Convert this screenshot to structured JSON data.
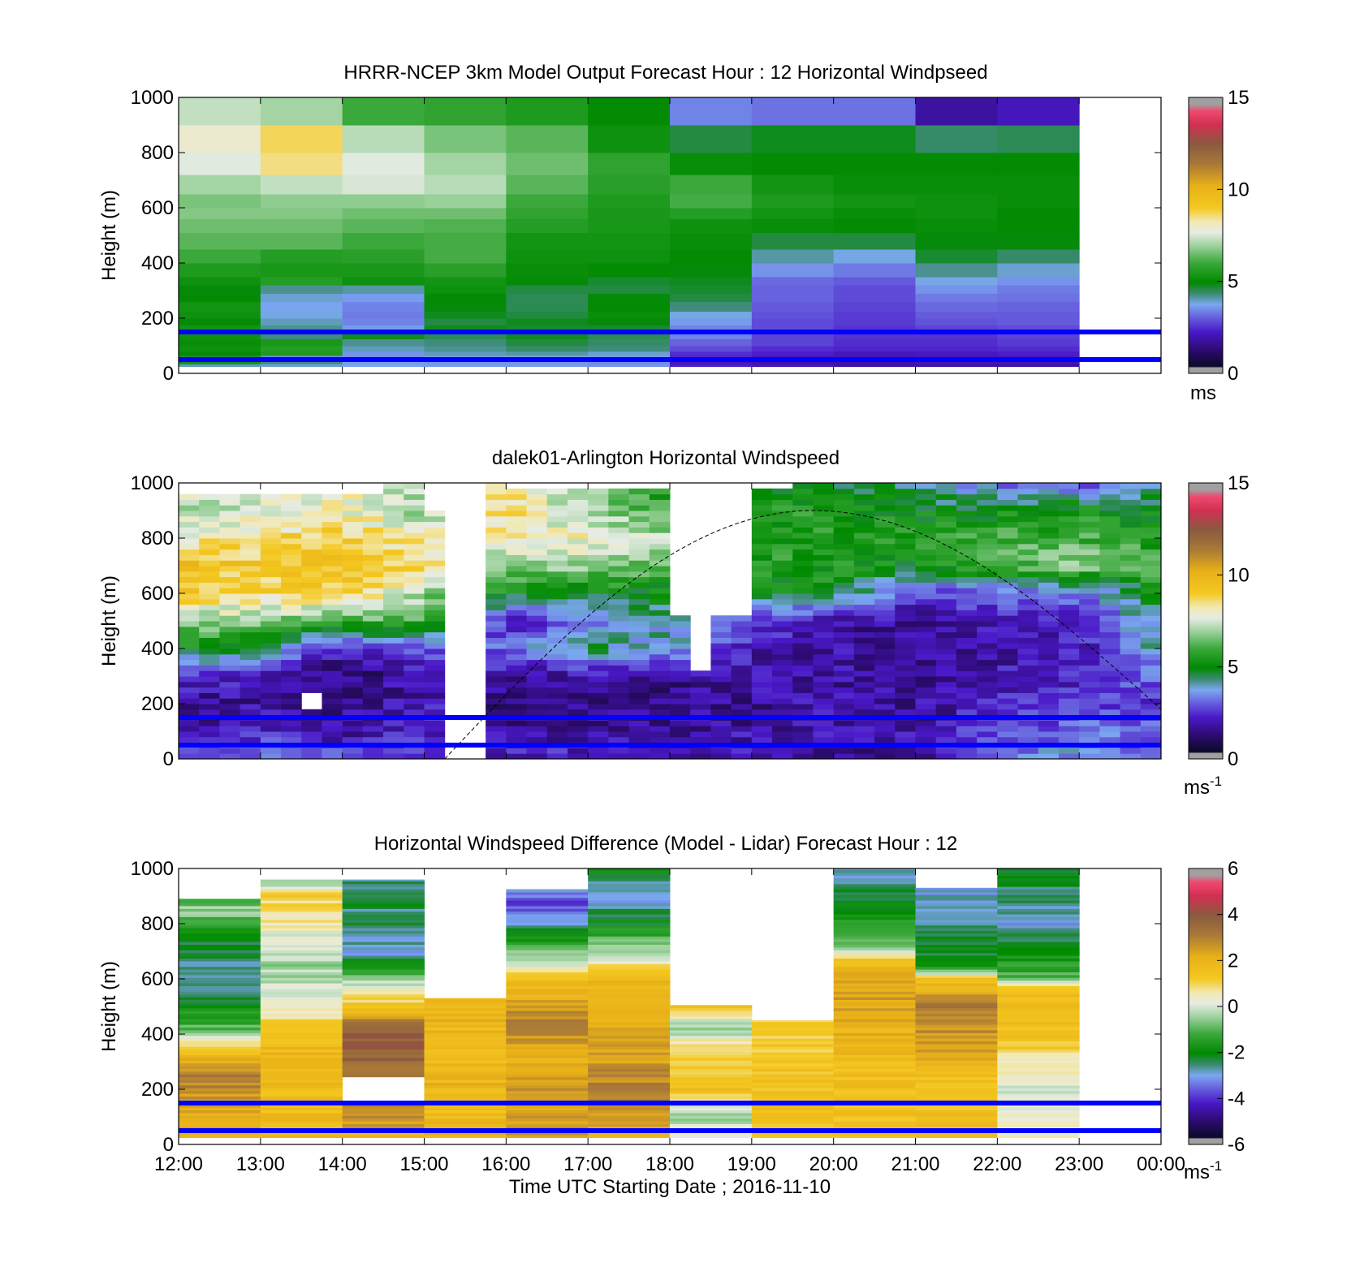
{
  "chart_data": [
    {
      "type": "heatmap",
      "title": "HRRR-NCEP 3km Model Output   Forecast Hour : 12 Horizontal Windpseed",
      "ylabel": "Height (m)",
      "xlabel": "",
      "xlim_hours": [
        12,
        24
      ],
      "ylim": [
        0,
        1000
      ],
      "yticks": [
        "0",
        "200",
        "400",
        "600",
        "800",
        "1000"
      ],
      "colorbar": {
        "ticks": [
          "0",
          "5",
          "10",
          "15"
        ],
        "range": [
          0,
          15
        ],
        "unit": "ms",
        "unit_sup": ""
      },
      "reference_lines_m": [
        50,
        150
      ],
      "x_edges": [
        "12:00",
        "13:00",
        "14:00",
        "15:00",
        "16:00",
        "17:00",
        "18:00",
        "19:00",
        "20:00",
        "21:00",
        "22:00",
        "23:00"
      ],
      "y_edges": [
        25,
        35,
        50,
        65,
        80,
        100,
        125,
        150,
        175,
        200,
        225,
        260,
        290,
        320,
        350,
        400,
        450,
        510,
        560,
        600,
        650,
        720,
        800,
        900,
        1000
      ],
      "columns": [
        [
          4.0,
          5.2,
          4.6,
          4.9,
          5.2,
          5.1,
          5.2,
          5.3,
          5.0,
          5.2,
          5.3,
          5.0,
          4.9,
          5.2,
          5.5,
          6.0,
          6.3,
          6.5,
          6.7,
          6.6,
          7.0,
          7.6,
          7.9,
          7.3
        ],
        [
          3.9,
          4.3,
          3.4,
          5.5,
          5.6,
          5.4,
          4.3,
          4.2,
          4.0,
          3.8,
          3.7,
          3.9,
          4.2,
          5.6,
          5.4,
          5.6,
          6.3,
          6.5,
          6.7,
          6.8,
          7.3,
          8.5,
          8.7,
          7.0
        ],
        [
          3.7,
          3.6,
          3.4,
          3.5,
          4.0,
          4.2,
          4.8,
          3.6,
          3.3,
          3.2,
          3.3,
          3.6,
          4.1,
          5.2,
          5.4,
          5.7,
          6.0,
          6.3,
          6.5,
          6.8,
          7.5,
          7.6,
          7.2,
          6.0
        ],
        [
          3.6,
          3.5,
          3.6,
          4.0,
          4.2,
          4.3,
          4.5,
          4.8,
          4.6,
          4.8,
          4.9,
          5.0,
          5.2,
          5.3,
          5.7,
          6.1,
          6.1,
          6.2,
          6.5,
          6.9,
          7.2,
          7.0,
          6.6,
          5.8
        ],
        [
          3.6,
          3.5,
          3.7,
          4.1,
          4.4,
          4.6,
          4.8,
          4.7,
          4.8,
          4.6,
          4.5,
          4.5,
          4.6,
          4.9,
          5.1,
          5.2,
          5.3,
          5.6,
          5.8,
          6.0,
          6.3,
          6.5,
          6.3,
          5.5
        ],
        [
          3.5,
          3.4,
          3.6,
          3.9,
          4.3,
          4.4,
          4.5,
          4.7,
          4.9,
          5.1,
          5.0,
          4.9,
          4.6,
          4.7,
          5.0,
          5.2,
          5.3,
          5.4,
          5.4,
          5.5,
          5.7,
          5.8,
          5.2,
          5.0
        ],
        [
          2.0,
          1.8,
          2.1,
          2.2,
          2.6,
          2.9,
          3.3,
          3.3,
          3.6,
          3.8,
          4.3,
          4.6,
          4.7,
          4.8,
          4.9,
          5.0,
          5.1,
          5.2,
          5.6,
          6.1,
          6.0,
          5.1,
          4.6,
          3.3
        ],
        [
          1.8,
          1.6,
          1.9,
          2.0,
          2.2,
          2.5,
          2.5,
          2.6,
          2.6,
          2.7,
          2.8,
          2.9,
          2.9,
          3.0,
          3.5,
          4.1,
          4.6,
          5.1,
          5.3,
          5.5,
          5.3,
          5.0,
          4.8,
          3.1
        ],
        [
          1.6,
          1.6,
          1.8,
          1.8,
          2.1,
          2.2,
          2.3,
          2.3,
          2.4,
          2.4,
          2.5,
          2.6,
          2.6,
          2.8,
          3.2,
          3.8,
          4.6,
          5.0,
          5.1,
          5.3,
          5.1,
          5.0,
          4.8,
          3.1
        ],
        [
          1.6,
          1.7,
          1.8,
          1.9,
          2.1,
          2.2,
          2.3,
          2.5,
          2.7,
          2.8,
          3.0,
          3.2,
          3.5,
          3.8,
          4.2,
          4.7,
          4.9,
          5.1,
          5.2,
          5.2,
          5.1,
          5.0,
          4.4,
          1.5
        ],
        [
          1.6,
          1.7,
          1.9,
          2.0,
          2.2,
          2.4,
          2.5,
          2.6,
          2.8,
          2.8,
          2.9,
          3.1,
          3.2,
          3.5,
          3.9,
          4.4,
          4.9,
          5.0,
          5.0,
          5.1,
          5.1,
          5.0,
          4.5,
          1.8
        ]
      ],
      "colors": {
        "reference_line": "#0000ff"
      }
    },
    {
      "type": "heatmap",
      "title": "dalek01-Arlington  Horizontal Windspeed",
      "ylabel": "Height (m)",
      "xlabel": "",
      "xlim_hours": [
        12,
        24
      ],
      "ylim": [
        0,
        1000
      ],
      "yticks": [
        "0",
        "200",
        "400",
        "600",
        "800",
        "1000"
      ],
      "colorbar": {
        "ticks": [
          "0",
          "5",
          "10",
          "15"
        ],
        "range": [
          0,
          15
        ],
        "unit": "ms",
        "unit_sup": "-1"
      },
      "reference_lines_m": [
        50,
        150
      ],
      "dashed_curve": {
        "start_hour": 15.25,
        "peak_hour": 19.75,
        "end_hour": 24,
        "peak_m": 900,
        "end_m": 180
      },
      "anchor_hours": [
        12,
        13,
        14,
        15,
        16,
        17,
        18,
        19,
        20,
        21,
        22,
        23,
        24
      ],
      "anchor_heights_m": [
        25,
        100,
        200,
        300,
        400,
        500,
        600,
        700,
        800,
        900,
        1000
      ],
      "anchor_values": [
        [
          3.0,
          1.5,
          1.2,
          2.5,
          5.0,
          7.0,
          9.0,
          9.5,
          8.0,
          7.0,
          8.0
        ],
        [
          3.0,
          2.0,
          1.5,
          1.6,
          4.5,
          7.0,
          8.5,
          9.0,
          8.5,
          7.5,
          8.0
        ],
        [
          2.5,
          1.5,
          1.3,
          1.0,
          1.6,
          6.0,
          9.0,
          9.5,
          9.0,
          8.0,
          8.0
        ],
        [
          2.5,
          2.0,
          1.8,
          1.5,
          3.0,
          6.0,
          7.0,
          8.5,
          8.0,
          7.0,
          7.0
        ],
        [
          2.0,
          1.5,
          1.2,
          1.5,
          3.0,
          2.0,
          5.0,
          7.0,
          8.0,
          8.5,
          8.5
        ],
        [
          2.0,
          1.5,
          1.3,
          1.5,
          4.5,
          3.0,
          5.0,
          7.0,
          8.0,
          7.0,
          7.0
        ],
        [
          1.8,
          1.5,
          1.2,
          1.4,
          4.0,
          4.0,
          5.0,
          6.0,
          7.0,
          6.0,
          5.0
        ],
        [
          1.8,
          1.6,
          1.4,
          1.5,
          1.8,
          2.5,
          5.0,
          5.5,
          5.5,
          5.5,
          5.0
        ],
        [
          1.5,
          1.6,
          1.8,
          1.5,
          1.5,
          1.5,
          5.0,
          5.5,
          5.5,
          5.5,
          4.5
        ],
        [
          1.5,
          1.6,
          1.4,
          1.3,
          1.4,
          1.5,
          2.5,
          5.0,
          5.5,
          5.0,
          4.5
        ],
        [
          3.0,
          2.5,
          2.0,
          1.8,
          1.6,
          1.8,
          3.0,
          6.0,
          6.0,
          5.0,
          3.0
        ],
        [
          3.5,
          3.0,
          2.5,
          2.0,
          1.8,
          2.0,
          3.0,
          7.0,
          6.0,
          5.5,
          2.5
        ],
        [
          2.5,
          3.0,
          2.0,
          3.0,
          4.0,
          4.5,
          5.0,
          6.0,
          5.5,
          5.0,
          4.0
        ]
      ],
      "white_gaps": [
        {
          "from_hour": 15.25,
          "to_hour": 15.65,
          "from_m": 0,
          "to_m": 1000
        },
        {
          "from_hour": 15.0,
          "to_hour": 15.25,
          "from_m": 900,
          "to_m": 1000
        },
        {
          "from_hour": 18.05,
          "to_hour": 19.0,
          "from_m": 520,
          "to_m": 1000
        },
        {
          "from_hour": 18.3,
          "to_hour": 18.55,
          "from_m": 320,
          "to_m": 520
        },
        {
          "from_hour": 16.0,
          "to_hour": 18.0,
          "from_m": 990,
          "to_m": 1000
        },
        {
          "from_hour": 13.6,
          "to_hour": 13.85,
          "from_m": 180,
          "to_m": 240
        },
        {
          "from_hour": 12.0,
          "to_hour": 14.5,
          "from_m": 960,
          "to_m": 1000
        },
        {
          "from_hour": 19.0,
          "to_hour": 19.5,
          "from_m": 985,
          "to_m": 1000
        }
      ],
      "colors": {
        "reference_line": "#0000ff",
        "dashed_curve": "#000000"
      }
    },
    {
      "type": "heatmap",
      "title": "Horizontal Windspeed Difference (Model - Lidar) Forecast Hour : 12",
      "ylabel": "Height (m)",
      "xlabel": "Time UTC  Starting Date ; 2016-11-10",
      "xticks": [
        "12:00",
        "13:00",
        "14:00",
        "15:00",
        "16:00",
        "17:00",
        "18:00",
        "19:00",
        "20:00",
        "21:00",
        "22:00",
        "23:00",
        "00:00"
      ],
      "xlim_hours": [
        12,
        24
      ],
      "ylim": [
        0,
        1000
      ],
      "yticks": [
        "0",
        "200",
        "400",
        "600",
        "800",
        "1000"
      ],
      "colorbar": {
        "ticks": [
          "-6",
          "-4",
          "-2",
          "0",
          "2",
          "4",
          "6"
        ],
        "range": [
          -6,
          6
        ],
        "unit": "ms",
        "unit_sup": "-1"
      },
      "reference_lines_m": [
        50,
        150
      ],
      "columns": [
        {
          "hour": 12,
          "top_m": 890,
          "profile": [
            [
              25,
              2.0
            ],
            [
              150,
              2.5
            ],
            [
              250,
              3.0
            ],
            [
              340,
              1.5
            ],
            [
              420,
              -1.0
            ],
            [
              600,
              -3.0
            ],
            [
              750,
              -2.0
            ],
            [
              850,
              -0.5
            ],
            [
              890,
              -1.0
            ]
          ]
        },
        {
          "hour": 13,
          "top_m": 960,
          "profile": [
            [
              25,
              2.0
            ],
            [
              150,
              1.5
            ],
            [
              300,
              2.0
            ],
            [
              400,
              1.5
            ],
            [
              500,
              0.3
            ],
            [
              650,
              -0.5
            ],
            [
              800,
              0.5
            ],
            [
              900,
              1.0
            ],
            [
              960,
              -0.5
            ]
          ]
        },
        {
          "hour": 14,
          "top_m": 960,
          "profile": [
            [
              25,
              2.0
            ],
            [
              120,
              3.0
            ],
            [
              240,
              3.0
            ],
            [
              300,
              3.5
            ],
            [
              400,
              4.0
            ],
            [
              500,
              1.5
            ],
            [
              600,
              -0.5
            ],
            [
              700,
              -3.0
            ],
            [
              800,
              -2.5
            ],
            [
              960,
              -2.5
            ]
          ]
        },
        {
          "hour": 15,
          "top_m": 530,
          "profile": [
            [
              25,
              2.0
            ],
            [
              140,
              1.5
            ],
            [
              250,
              2.0
            ],
            [
              350,
              1.5
            ],
            [
              450,
              2.0
            ],
            [
              530,
              2.0
            ]
          ]
        },
        {
          "hour": 16,
          "top_m": 925,
          "profile": [
            [
              25,
              2.5
            ],
            [
              200,
              2.5
            ],
            [
              300,
              2.0
            ],
            [
              450,
              3.0
            ],
            [
              600,
              1.5
            ],
            [
              650,
              0.0
            ],
            [
              720,
              -1.0
            ],
            [
              800,
              -3.0
            ],
            [
              880,
              -4.0
            ],
            [
              925,
              -3.0
            ]
          ]
        },
        {
          "hour": 17,
          "top_m": 1000,
          "profile": [
            [
              25,
              2.0
            ],
            [
              200,
              3.0
            ],
            [
              300,
              2.5
            ],
            [
              450,
              2.0
            ],
            [
              600,
              2.0
            ],
            [
              680,
              0.0
            ],
            [
              800,
              -2.0
            ],
            [
              900,
              -3.0
            ],
            [
              1000,
              -2.0
            ]
          ]
        },
        {
          "hour": 18,
          "top_m": 505,
          "profile": [
            [
              25,
              0.5
            ],
            [
              100,
              -0.5
            ],
            [
              200,
              1.5
            ],
            [
              350,
              1.0
            ],
            [
              420,
              -0.5
            ],
            [
              505,
              1.5
            ]
          ]
        },
        {
          "hour": 19,
          "top_m": 450,
          "profile": [
            [
              25,
              1.5
            ],
            [
              200,
              1.5
            ],
            [
              350,
              1.2
            ],
            [
              450,
              1.0
            ]
          ]
        },
        {
          "hour": 20,
          "top_m": 1000,
          "profile": [
            [
              25,
              1.5
            ],
            [
              250,
              1.5
            ],
            [
              400,
              2.0
            ],
            [
              600,
              2.5
            ],
            [
              680,
              1.0
            ],
            [
              720,
              -1.0
            ],
            [
              850,
              -2.0
            ],
            [
              1000,
              -3.0
            ]
          ]
        },
        {
          "hour": 21,
          "top_m": 930,
          "profile": [
            [
              25,
              1.5
            ],
            [
              250,
              1.5
            ],
            [
              350,
              2.5
            ],
            [
              500,
              3.0
            ],
            [
              600,
              1.5
            ],
            [
              650,
              -2.0
            ],
            [
              800,
              -2.5
            ],
            [
              930,
              -3.0
            ]
          ]
        },
        {
          "hour": 22,
          "top_m": 1000,
          "profile": [
            [
              25,
              0.5
            ],
            [
              150,
              0.0
            ],
            [
              250,
              0.3
            ],
            [
              400,
              1.5
            ],
            [
              560,
              1.5
            ],
            [
              600,
              -1.0
            ],
            [
              800,
              -3.0
            ],
            [
              1000,
              -2.0
            ]
          ]
        }
      ],
      "white_gaps": [
        {
          "from_hour": 14,
          "to_hour": 15,
          "from_m": 150,
          "to_m": 240
        },
        {
          "from_hour": 15,
          "to_hour": 16,
          "from_m": 555,
          "to_m": 850
        }
      ],
      "colors": {
        "reference_line": "#0000ff"
      }
    }
  ]
}
